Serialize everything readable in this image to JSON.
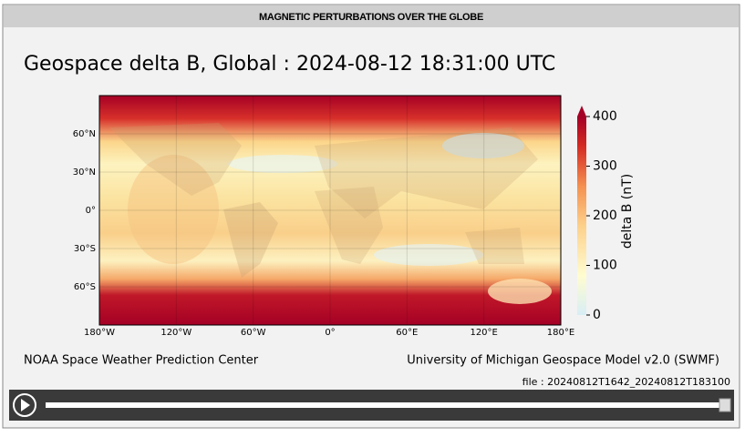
{
  "header": {
    "title": "MAGNETIC PERTURBATIONS OVER THE GLOBE"
  },
  "plot": {
    "title": "Geospace delta B, Global : 2024-08-12  18:31:00 UTC",
    "map": {
      "lonlim": [
        -180,
        180
      ],
      "latlim": [
        -90,
        90
      ],
      "lon_ticks": [
        {
          "value": -180,
          "label": "180°W"
        },
        {
          "value": -120,
          "label": "120°W"
        },
        {
          "value": -60,
          "label": "60°W"
        },
        {
          "value": 0,
          "label": "0°"
        },
        {
          "value": 60,
          "label": "60°E"
        },
        {
          "value": 120,
          "label": "120°E"
        },
        {
          "value": 180,
          "label": "180°E"
        }
      ],
      "lat_ticks": [
        {
          "value": 60,
          "label": "60°N"
        },
        {
          "value": 30,
          "label": "30°N"
        },
        {
          "value": 0,
          "label": "0°"
        },
        {
          "value": -30,
          "label": "30°S"
        },
        {
          "value": -60,
          "label": "60°S"
        }
      ]
    },
    "colorbar": {
      "label": "delta B (nT)",
      "lim": [
        0,
        400
      ],
      "ticks": [
        0,
        100,
        200,
        300,
        400
      ]
    }
  },
  "footer": {
    "left": "NOAA Space Weather Prediction Center",
    "right": "University of Michigan Geospace Model v2.0 (SWMF)",
    "file": "file : 20240812T1642_20240812T183100"
  }
}
